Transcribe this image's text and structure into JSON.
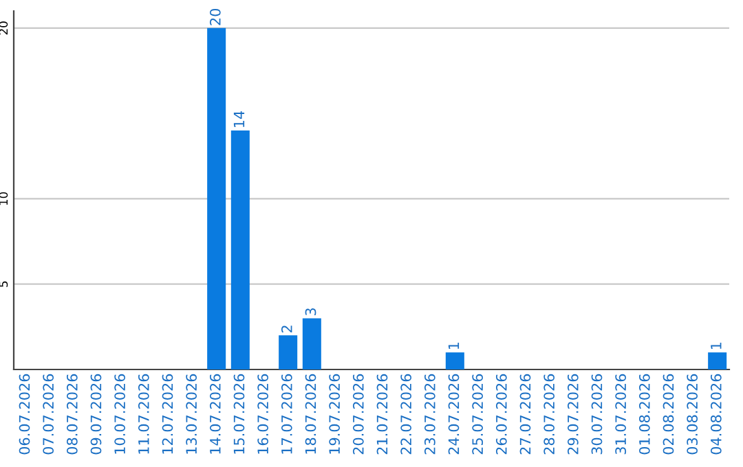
{
  "chart_data": {
    "type": "bar",
    "categories": [
      "06.07.2026",
      "07.07.2026",
      "08.07.2026",
      "09.07.2026",
      "10.07.2026",
      "11.07.2026",
      "12.07.2026",
      "13.07.2026",
      "14.07.2026",
      "15.07.2026",
      "16.07.2026",
      "17.07.2026",
      "18.07.2026",
      "19.07.2026",
      "20.07.2026",
      "21.07.2026",
      "22.07.2026",
      "23.07.2026",
      "24.07.2026",
      "25.07.2026",
      "26.07.2026",
      "27.07.2026",
      "28.07.2026",
      "29.07.2026",
      "30.07.2026",
      "31.07.2026",
      "01.08.2026",
      "02.08.2026",
      "03.08.2026",
      "04.08.2026"
    ],
    "values": [
      0,
      0,
      0,
      0,
      0,
      0,
      0,
      0,
      20,
      14,
      0,
      2,
      3,
      0,
      0,
      0,
      0,
      0,
      1,
      0,
      0,
      0,
      0,
      0,
      0,
      0,
      0,
      0,
      0,
      1
    ],
    "value_labels": [
      null,
      null,
      null,
      null,
      null,
      null,
      null,
      null,
      "20",
      "14",
      null,
      "2",
      "3",
      null,
      null,
      null,
      null,
      null,
      "1",
      null,
      null,
      null,
      null,
      null,
      null,
      null,
      null,
      null,
      null,
      "1"
    ],
    "color": "#0a7be0",
    "ylim": [
      0,
      21
    ],
    "yticks": [
      5,
      10,
      20
    ],
    "grid": "y",
    "legend": false
  }
}
